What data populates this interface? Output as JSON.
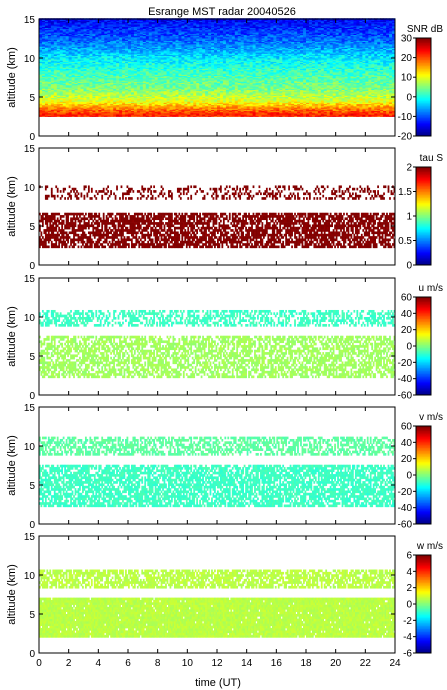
{
  "figure": {
    "title": "Esrange MST radar 20040526",
    "xlabel": "time (UT)",
    "x_ticks": [
      0,
      2,
      4,
      6,
      8,
      10,
      12,
      14,
      16,
      18,
      20,
      22,
      24
    ]
  },
  "chart_data": [
    {
      "type": "heatmap",
      "quantity": "SNR",
      "ylabel": "altitude (km)",
      "xlim": [
        0,
        24
      ],
      "ylim": [
        0,
        15
      ],
      "y_ticks": [
        0,
        5,
        10,
        15
      ],
      "colorbar": {
        "label": "SNR dB",
        "range": [
          -20,
          30
        ],
        "ticks": [
          -20,
          -10,
          0,
          10,
          20,
          30
        ]
      },
      "coverage": {
        "x_range": [
          0,
          24
        ],
        "y_range": [
          2.5,
          15
        ]
      },
      "profile": [
        {
          "altitude": 2.8,
          "value": 22
        },
        {
          "altitude": 3.5,
          "value": 18
        },
        {
          "altitude": 4.5,
          "value": 10
        },
        {
          "altitude": 6.0,
          "value": 5
        },
        {
          "altitude": 8.0,
          "value": 2
        },
        {
          "altitude": 10.0,
          "value": -2
        },
        {
          "altitude": 12.0,
          "value": -8
        },
        {
          "altitude": 14.0,
          "value": -12
        },
        {
          "altitude": 15.0,
          "value": -14
        }
      ]
    },
    {
      "type": "heatmap",
      "quantity": "tau",
      "ylabel": "altitude (km)",
      "xlim": [
        0,
        24
      ],
      "ylim": [
        0,
        15
      ],
      "y_ticks": [
        0,
        5,
        10,
        15
      ],
      "colorbar": {
        "label": "tau S",
        "range": [
          0,
          2
        ],
        "ticks": [
          0,
          0.5,
          1,
          1.5,
          2
        ]
      },
      "layers": [
        {
          "altitude_range": [
            2.2,
            6.6
          ],
          "value": 2,
          "density": 0.7
        },
        {
          "altitude_range": [
            8.4,
            10.2
          ],
          "value": 2,
          "density": 0.28
        }
      ]
    },
    {
      "type": "heatmap",
      "quantity": "u",
      "ylabel": "altitude (km)",
      "xlim": [
        0,
        24
      ],
      "ylim": [
        0,
        15
      ],
      "y_ticks": [
        0,
        5,
        10,
        15
      ],
      "colorbar": {
        "label": "u m/s",
        "range": [
          -60,
          60
        ],
        "ticks": [
          -60,
          -40,
          -20,
          0,
          20,
          40,
          60
        ]
      },
      "layers": [
        {
          "altitude_range": [
            2.2,
            7.5
          ],
          "value": 4,
          "density": 0.62
        },
        {
          "altitude_range": [
            8.8,
            10.8
          ],
          "value": -8,
          "density": 0.5
        }
      ]
    },
    {
      "type": "heatmap",
      "quantity": "v",
      "ylabel": "altitude (km)",
      "xlim": [
        0,
        24
      ],
      "ylim": [
        0,
        15
      ],
      "y_ticks": [
        0,
        5,
        10,
        15
      ],
      "colorbar": {
        "label": "v m/s",
        "range": [
          -60,
          60
        ],
        "ticks": [
          -60,
          -40,
          -20,
          0,
          20,
          40,
          60
        ]
      },
      "layers": [
        {
          "altitude_range": [
            2.2,
            7.5
          ],
          "value": -8,
          "density": 0.72
        },
        {
          "altitude_range": [
            8.8,
            11.0
          ],
          "value": -4,
          "density": 0.55
        }
      ]
    },
    {
      "type": "heatmap",
      "quantity": "w",
      "ylabel": "altitude (km)",
      "xlim": [
        0,
        24
      ],
      "ylim": [
        0,
        15
      ],
      "y_ticks": [
        0,
        5,
        10,
        15
      ],
      "colorbar": {
        "label": "w m/s",
        "range": [
          -6,
          6
        ],
        "ticks": [
          -6,
          -4,
          -2,
          0,
          2,
          4,
          6
        ]
      },
      "layers": [
        {
          "altitude_range": [
            2.0,
            7.0
          ],
          "value": 0.7,
          "density": 0.97
        },
        {
          "altitude_range": [
            8.3,
            10.5
          ],
          "value": 0.7,
          "density": 0.7
        }
      ]
    }
  ]
}
